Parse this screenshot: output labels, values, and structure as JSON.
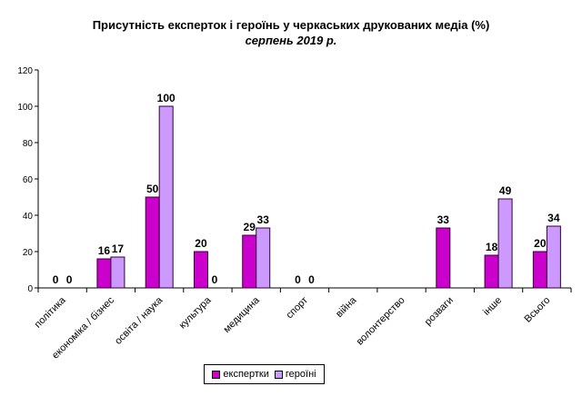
{
  "chart_data": {
    "type": "bar",
    "title": "Присутність eксперток і героїнь у черкаських друкованих медіа (%)",
    "subtitle": "серпень 2019 р.",
    "categories": [
      "політика",
      "економіка / бізнес",
      "освіта / наука",
      "культура",
      "медицина",
      "спорт",
      "війна",
      "волонтерство",
      "розваги",
      "інше",
      "Всього"
    ],
    "series": [
      {
        "name": "експертки",
        "color": "#cc00cc",
        "values": [
          0,
          16,
          50,
          20,
          29,
          0,
          null,
          null,
          33,
          18,
          20
        ]
      },
      {
        "name": "героїні",
        "color": "#cc99ff",
        "values": [
          0,
          17,
          100,
          0,
          33,
          0,
          null,
          null,
          null,
          49,
          34
        ]
      }
    ],
    "ylim": [
      0,
      120
    ],
    "yticks": [
      0,
      20,
      40,
      60,
      80,
      100,
      120
    ],
    "grid": false,
    "legend_position": "bottom",
    "xlabel": "",
    "ylabel": ""
  }
}
